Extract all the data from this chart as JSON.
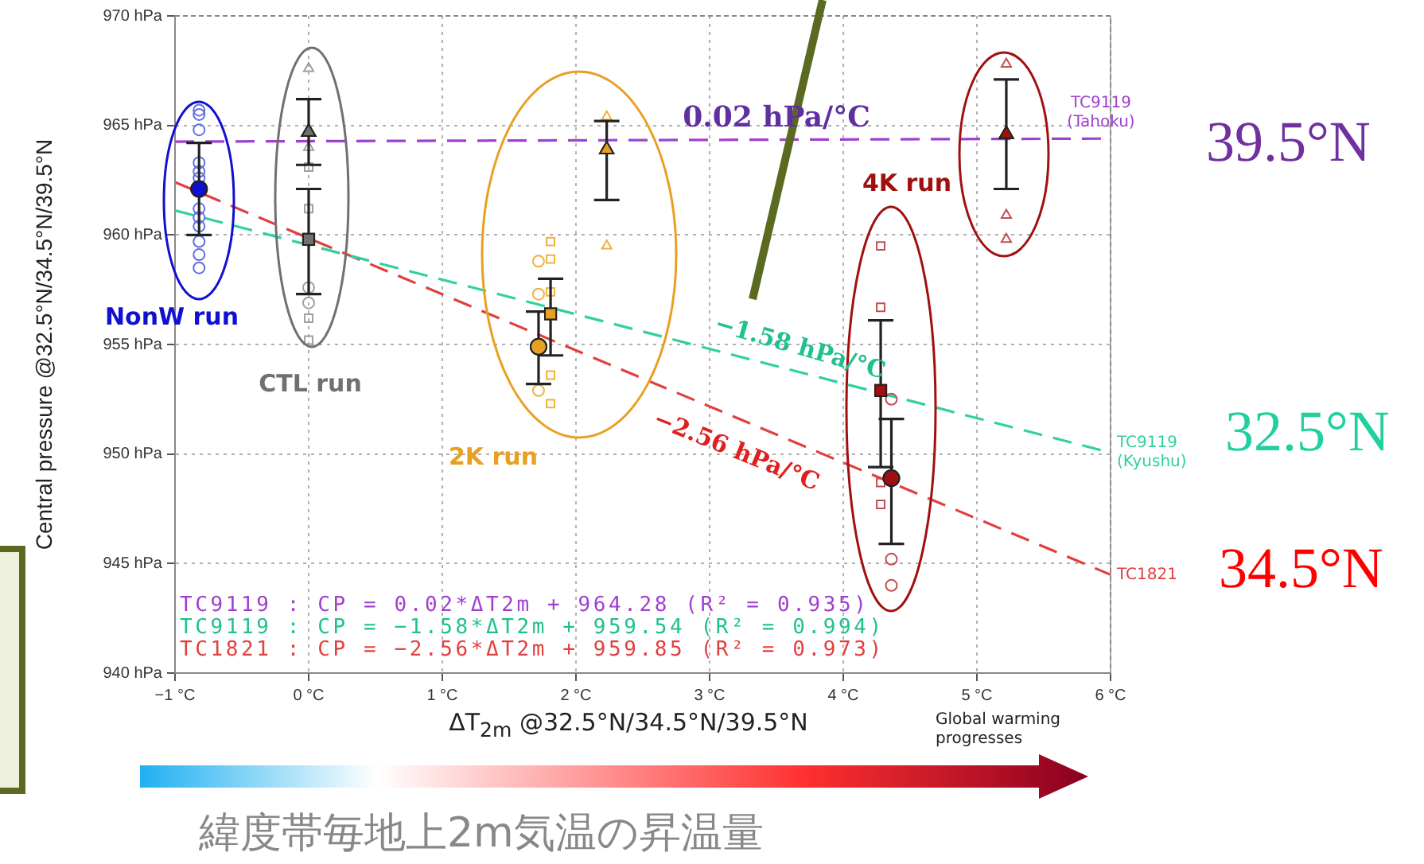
{
  "chart_data": {
    "type": "scatter",
    "xlabel": "ΔT$_{2m}$ @32.5°N/34.5°N/39.5°N",
    "ylabel": "Central pressure @32.5°N/34.5°N/39.5°N",
    "xlim": [
      -1,
      6
    ],
    "xticks": [
      {
        "value": -1,
        "label": "−1 °C"
      },
      {
        "value": 0,
        "label": "0 °C"
      },
      {
        "value": 1,
        "label": "1 °C"
      },
      {
        "value": 2,
        "label": "2 °C"
      },
      {
        "value": 3,
        "label": "3 °C"
      },
      {
        "value": 4,
        "label": "4 °C"
      },
      {
        "value": 5,
        "label": "5 °C"
      },
      {
        "value": 6,
        "label": "6 °C"
      }
    ],
    "ylim": [
      940,
      970
    ],
    "yticks": [
      {
        "value": 940,
        "label": "940 hPa"
      },
      {
        "value": 945,
        "label": "945 hPa"
      },
      {
        "value": 950,
        "label": "950 hPa"
      },
      {
        "value": 955,
        "label": "955 hPa"
      },
      {
        "value": 960,
        "label": "960 hPa"
      },
      {
        "value": 965,
        "label": "965 hPa"
      },
      {
        "value": 970,
        "label": "970 hPa"
      }
    ],
    "grid": true,
    "legend": false,
    "series": [
      {
        "type": "line",
        "name": "TC9119 (Tahoku)",
        "color": "#a040d0",
        "line_style": "dashed",
        "x": [
          -1,
          6
        ],
        "values": [
          964.26,
          964.4
        ]
      },
      {
        "type": "line",
        "name": "TC9119 (Kyushu)",
        "color": "#30d0a0",
        "line_style": "dashed",
        "x": [
          -1,
          6
        ],
        "values": [
          961.12,
          950.06
        ]
      },
      {
        "type": "line",
        "name": "TC1821",
        "color": "#e04040",
        "line_style": "dashed",
        "x": [
          -1,
          6
        ],
        "values": [
          962.41,
          944.49
        ]
      },
      {
        "color": "#6070e0",
        "marker": "circle",
        "x": [
          -0.82,
          -0.82,
          -0.82,
          -0.82,
          -0.82,
          -0.82,
          -0.82,
          -0.82,
          -0.82,
          -0.82,
          -0.82,
          -0.82
        ],
        "values": [
          965.7,
          965.5,
          964.8,
          963.3,
          962.9,
          962.6,
          961.2,
          960.8,
          960.4,
          959.7,
          959.1,
          958.5
        ]
      },
      {
        "color": "#a0a0a0",
        "marker": "triangle",
        "x": [
          0,
          0
        ],
        "values": [
          967.6,
          964.0
        ]
      },
      {
        "color": "#a0a0a0",
        "marker": "square",
        "x": [
          0,
          0,
          0,
          0
        ],
        "values": [
          963.1,
          961.2,
          956.2,
          955.2
        ]
      },
      {
        "color": "#a0a0a0",
        "marker": "circle",
        "x": [
          0,
          0
        ],
        "values": [
          957.6,
          956.9
        ]
      },
      {
        "color": "#f0b040",
        "marker": "triangle",
        "x": [
          2.23,
          2.23
        ],
        "values": [
          965.4,
          959.5
        ]
      },
      {
        "color": "#f0b040",
        "marker": "square",
        "x": [
          1.81,
          1.81,
          1.81,
          1.81,
          1.81
        ],
        "values": [
          959.7,
          958.9,
          957.4,
          953.6,
          952.3
        ]
      },
      {
        "color": "#f0b040",
        "marker": "circle",
        "x": [
          1.72,
          1.72,
          1.72
        ],
        "values": [
          958.8,
          957.3,
          952.9
        ]
      },
      {
        "color": "#c05050",
        "marker": "square",
        "x": [
          4.28,
          4.28,
          4.28,
          4.28
        ],
        "values": [
          959.5,
          956.7,
          948.7,
          947.7
        ]
      },
      {
        "color": "#c05050",
        "marker": "circle",
        "x": [
          4.36,
          4.36,
          4.36
        ],
        "values": [
          952.5,
          945.2,
          944.0
        ]
      },
      {
        "color": "#c05050",
        "marker": "triangle",
        "x": [
          5.22,
          5.22,
          5.22
        ],
        "values": [
          967.8,
          960.9,
          959.8
        ]
      },
      {
        "color": "#1010d0",
        "marker": "circle",
        "x": [
          -0.82
        ],
        "values": [
          962.1
        ],
        "errors": [
          [
            960.0,
            964.2
          ]
        ]
      },
      {
        "color": "#707070",
        "marker": "triangle",
        "x": [
          0
        ],
        "values": [
          964.7
        ],
        "errors": [
          [
            963.2,
            966.2
          ]
        ]
      },
      {
        "color": "#707070",
        "marker": "square",
        "x": [
          0
        ],
        "values": [
          959.8
        ],
        "errors": [
          [
            957.3,
            962.1
          ]
        ]
      },
      {
        "color": "#e8a020",
        "marker": "triangle",
        "x": [
          2.23
        ],
        "values": [
          963.9
        ],
        "errors": [
          [
            961.6,
            965.2
          ]
        ]
      },
      {
        "color": "#e8a020",
        "marker": "square",
        "x": [
          1.81
        ],
        "values": [
          956.4
        ],
        "errors": [
          [
            954.5,
            958.0
          ]
        ]
      },
      {
        "color": "#e8a020",
        "marker": "circle",
        "x": [
          1.72
        ],
        "values": [
          954.9
        ],
        "errors": [
          [
            953.2,
            956.5
          ]
        ]
      },
      {
        "color": "#a01010",
        "marker": "square",
        "x": [
          4.28
        ],
        "values": [
          952.9
        ],
        "errors": [
          [
            949.4,
            956.1
          ]
        ]
      },
      {
        "color": "#a01010",
        "marker": "circle",
        "x": [
          4.36
        ],
        "values": [
          948.9
        ],
        "errors": [
          [
            945.9,
            951.6
          ]
        ]
      },
      {
        "color": "#a01010",
        "marker": "triangle",
        "x": [
          5.22
        ],
        "values": [
          964.6
        ],
        "errors": [
          [
            962.1,
            967.1
          ]
        ]
      }
    ],
    "annotations": [
      "NonW run",
      "CTL run",
      "2K run",
      "4K run",
      "0.02 hPa/°C",
      "−1.58 hPa/°C",
      "−2.56 hPa/°C",
      "TC9119 : CP = 0.02*ΔT2m + 964.28 (R² = 0.935)",
      "TC9119 : CP = −1.58*ΔT2m + 959.54 (R² = 0.994)",
      "TC1821 : CP = −2.56*ΔT2m + 959.85 (R² = 0.973)",
      "39.5°N",
      "32.5°N",
      "34.5°N",
      "Global warming progresses",
      "緯度帯毎地上2m気温の昇温量"
    ]
  }
}
